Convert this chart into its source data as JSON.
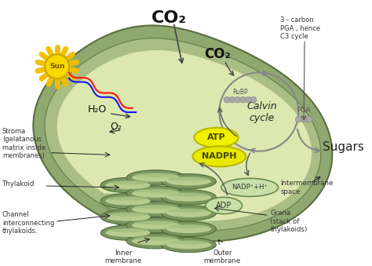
{
  "bg_color": "#ffffff",
  "outer_color": "#8fa870",
  "mid_color": "#a8be84",
  "stroma_color": "#c8d89a",
  "stroma_fill": "#dce8b0",
  "thylakoid_outer": "#7a9460",
  "thylakoid_mid": "#9ab878",
  "thylakoid_inner": "#b8cc90",
  "atp_color": "#f0f000",
  "nadph_color": "#e8e800",
  "nadp_fill": "#c8e0a8",
  "adp_fill": "#c8e0a8",
  "gray_arrow": "#888888",
  "dark_arrow": "#333333",
  "sun_yellow": "#f8d800",
  "sun_ray": "#f0c000",
  "text_color": "#222222",
  "label_color": "#333333",
  "rubp_dot": "#aaaaaa",
  "pga_dot": "#aaaaaa",
  "labels": {
    "co2_top": "CO₂",
    "co2_inner": "CO₂",
    "rubp": "RuBP",
    "calvin": "Calvin\ncycle",
    "pga": "PGA",
    "atp": "ATP",
    "nadph": "NADPH",
    "nadp_h": "NADP⁺+H⁺",
    "adp": "ADP",
    "h2o": "H₂O",
    "o2": "O₂",
    "sun": "Sun",
    "sugars": "Sugars",
    "stroma": "Stroma\n(gelatanous\nmatrix inside\nmembranes)",
    "thylakoid": "Thylakoid",
    "channel": "Channel\ninterconnecting\nthylakoids.",
    "inner_membrane": "Inner\nmembrane",
    "outer_membrane": "Outer\nmembrane",
    "grana": "Grana\n(stack of\nthylakoids)",
    "intermembrane": "Intermembrane\nspace",
    "three_carbon": "3 - carbon\nPGA , hence\nC3 cycle"
  }
}
